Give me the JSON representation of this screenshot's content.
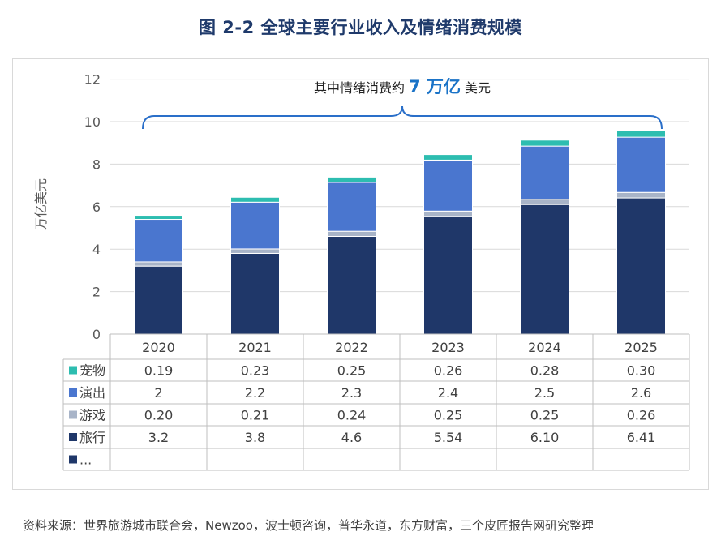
{
  "figure_title": "图 2-2 全球主要行业收入及情绪消费规模",
  "source_note": "资料来源：世界旅游城市联合会，Newzoo，波士顿咨询，普华永道，东方财富，三个皮匠报告网研究整理",
  "annotation": {
    "prefix": "其中情绪消费约",
    "highlight": "7 万亿",
    "suffix": "美元"
  },
  "colors": {
    "宠物": "#2dbdb0",
    "演出": "#4a76cf",
    "游戏": "#a8b4c8",
    "旅行": "#1f3769",
    "highlight": "#1a73c7",
    "brace": "#2a6fc9"
  },
  "chart_data": {
    "type": "bar",
    "stacked": true,
    "categories": [
      "2020",
      "2021",
      "2022",
      "2023",
      "2024",
      "2025"
    ],
    "ylabel": "万亿美元",
    "ylim": [
      0,
      12
    ],
    "yticks": [
      0,
      2,
      4,
      6,
      8,
      10,
      12
    ],
    "grid": true,
    "series": [
      {
        "name": "旅行",
        "values": [
          "3.2",
          "3.8",
          "4.6",
          "5.54",
          "6.10",
          "6.41"
        ]
      },
      {
        "name": "游戏",
        "values": [
          "0.20",
          "0.21",
          "0.24",
          "0.25",
          "0.25",
          "0.26"
        ]
      },
      {
        "name": "演出",
        "values": [
          "2",
          "2.2",
          "2.3",
          "2.4",
          "2.5",
          "2.6"
        ]
      },
      {
        "name": "宠物",
        "values": [
          "0.19",
          "0.23",
          "0.25",
          "0.26",
          "0.28",
          "0.30"
        ]
      }
    ],
    "table_rows": [
      "宠物",
      "演出",
      "游戏",
      "旅行"
    ],
    "table_extra_row": "..."
  }
}
